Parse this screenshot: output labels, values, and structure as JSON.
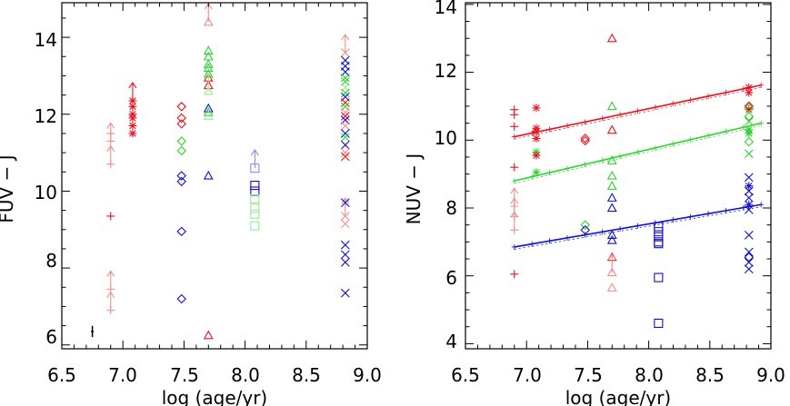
{
  "colors": {
    "red": "#e8121f",
    "pink": "#f08e8a",
    "green": "#2fd12f",
    "lightgreen": "#9fe89a",
    "blue": "#1010c8",
    "lightblue": "#8a8af0",
    "black": "#000000"
  },
  "chart_data": [
    {
      "id": "left",
      "type": "scatter",
      "xlabel": "log (age/yr)",
      "ylabel": "FUV − J",
      "xlim": [
        6.5,
        9.0
      ],
      "ylim": [
        5.9,
        14.9
      ],
      "xticks": [
        6.5,
        7.0,
        7.5,
        8.0,
        8.5,
        9.0
      ],
      "xtick_labels": [
        "6.5",
        "7.0",
        "7.5",
        "8.0",
        "8.5",
        "9.0"
      ],
      "yticks": [
        6,
        8,
        10,
        12,
        14
      ],
      "ytick_labels": [
        "6",
        "8",
        "10",
        "12",
        "14"
      ],
      "error_bar": {
        "x": 6.75,
        "y": 6.35,
        "err": 0.1
      },
      "points": [
        {
          "x": 6.9,
          "y": 9.35,
          "m": "plus",
          "c": "red"
        },
        {
          "x": 6.9,
          "y": 11.3,
          "m": "plus",
          "c": "pink",
          "arrow": "up"
        },
        {
          "x": 6.9,
          "y": 10.7,
          "m": "plus",
          "c": "pink",
          "arrow": "up"
        },
        {
          "x": 6.9,
          "y": 11.5,
          "m": "plus",
          "c": "pink"
        },
        {
          "x": 6.9,
          "y": 7.45,
          "m": "plus",
          "c": "pink",
          "arrow": "up"
        },
        {
          "x": 6.9,
          "y": 6.9,
          "m": "plus",
          "c": "pink",
          "arrow": "up"
        },
        {
          "x": 7.08,
          "y": 12.35,
          "m": "star",
          "c": "red",
          "arrow": "up"
        },
        {
          "x": 7.08,
          "y": 12.2,
          "m": "star",
          "c": "red"
        },
        {
          "x": 7.08,
          "y": 12.0,
          "m": "star",
          "c": "red"
        },
        {
          "x": 7.08,
          "y": 11.9,
          "m": "star",
          "c": "red"
        },
        {
          "x": 7.08,
          "y": 11.7,
          "m": "star",
          "c": "red"
        },
        {
          "x": 7.08,
          "y": 11.5,
          "m": "star",
          "c": "red"
        },
        {
          "x": 7.48,
          "y": 12.2,
          "m": "diamond",
          "c": "red"
        },
        {
          "x": 7.48,
          "y": 11.9,
          "m": "diamond",
          "c": "red"
        },
        {
          "x": 7.48,
          "y": 11.75,
          "m": "diamond",
          "c": "red"
        },
        {
          "x": 7.48,
          "y": 11.3,
          "m": "diamond",
          "c": "green"
        },
        {
          "x": 7.48,
          "y": 11.05,
          "m": "diamond",
          "c": "green"
        },
        {
          "x": 7.48,
          "y": 10.4,
          "m": "diamond",
          "c": "blue"
        },
        {
          "x": 7.48,
          "y": 10.25,
          "m": "diamond",
          "c": "blue"
        },
        {
          "x": 7.48,
          "y": 8.95,
          "m": "diamond",
          "c": "blue"
        },
        {
          "x": 7.48,
          "y": 7.2,
          "m": "diamond",
          "c": "blue"
        },
        {
          "x": 7.7,
          "y": 14.4,
          "m": "triangle",
          "c": "pink",
          "arrow": "up"
        },
        {
          "x": 7.7,
          "y": 13.65,
          "m": "triangle",
          "c": "green"
        },
        {
          "x": 7.7,
          "y": 13.5,
          "m": "triangle",
          "c": "green"
        },
        {
          "x": 7.7,
          "y": 13.3,
          "m": "triangle",
          "c": "green"
        },
        {
          "x": 7.7,
          "y": 13.2,
          "m": "triangle",
          "c": "green"
        },
        {
          "x": 7.7,
          "y": 13.05,
          "m": "triangle",
          "c": "green"
        },
        {
          "x": 7.7,
          "y": 12.95,
          "m": "triangle",
          "c": "red"
        },
        {
          "x": 7.7,
          "y": 12.75,
          "m": "triangle",
          "c": "red"
        },
        {
          "x": 7.7,
          "y": 12.6,
          "m": "triangle",
          "c": "lightgreen",
          "arrow": "up"
        },
        {
          "x": 7.7,
          "y": 12.15,
          "m": "triangle",
          "c": "blue"
        },
        {
          "x": 7.7,
          "y": 12.05,
          "m": "triangle",
          "c": "green"
        },
        {
          "x": 7.7,
          "y": 11.95,
          "m": "triangle",
          "c": "lightgreen"
        },
        {
          "x": 7.7,
          "y": 10.4,
          "m": "triangle",
          "c": "blue"
        },
        {
          "x": 7.7,
          "y": 6.25,
          "m": "triangle",
          "c": "red"
        },
        {
          "x": 8.08,
          "y": 10.6,
          "m": "square",
          "c": "lightblue",
          "arrow": "up"
        },
        {
          "x": 8.08,
          "y": 10.15,
          "m": "square",
          "c": "blue"
        },
        {
          "x": 8.08,
          "y": 10.0,
          "m": "square",
          "c": "blue"
        },
        {
          "x": 8.08,
          "y": 9.8,
          "m": "square",
          "c": "lightgreen"
        },
        {
          "x": 8.08,
          "y": 9.55,
          "m": "square",
          "c": "lightgreen"
        },
        {
          "x": 8.08,
          "y": 9.4,
          "m": "square",
          "c": "lightgreen"
        },
        {
          "x": 8.08,
          "y": 9.1,
          "m": "square",
          "c": "lightgreen"
        },
        {
          "x": 8.82,
          "y": 13.6,
          "m": "cross",
          "c": "pink",
          "arrow": "up"
        },
        {
          "x": 8.82,
          "y": 13.4,
          "m": "cross",
          "c": "blue"
        },
        {
          "x": 8.82,
          "y": 13.25,
          "m": "cross",
          "c": "blue"
        },
        {
          "x": 8.82,
          "y": 13.1,
          "m": "cross",
          "c": "blue"
        },
        {
          "x": 8.82,
          "y": 12.95,
          "m": "cross",
          "c": "green"
        },
        {
          "x": 8.82,
          "y": 12.85,
          "m": "cross",
          "c": "green"
        },
        {
          "x": 8.82,
          "y": 12.7,
          "m": "cross",
          "c": "lightgreen"
        },
        {
          "x": 8.82,
          "y": 12.55,
          "m": "cross",
          "c": "green"
        },
        {
          "x": 8.82,
          "y": 12.45,
          "m": "cross",
          "c": "blue"
        },
        {
          "x": 8.82,
          "y": 12.3,
          "m": "cross",
          "c": "red"
        },
        {
          "x": 8.82,
          "y": 12.2,
          "m": "cross",
          "c": "green"
        },
        {
          "x": 8.82,
          "y": 12.05,
          "m": "cross",
          "c": "pink"
        },
        {
          "x": 8.82,
          "y": 11.95,
          "m": "cross",
          "c": "red"
        },
        {
          "x": 8.82,
          "y": 11.85,
          "m": "cross",
          "c": "blue"
        },
        {
          "x": 8.82,
          "y": 11.7,
          "m": "cross",
          "c": "pink"
        },
        {
          "x": 8.82,
          "y": 11.5,
          "m": "cross",
          "c": "blue"
        },
        {
          "x": 8.82,
          "y": 11.4,
          "m": "cross",
          "c": "green"
        },
        {
          "x": 8.82,
          "y": 11.2,
          "m": "cross",
          "c": "blue"
        },
        {
          "x": 8.82,
          "y": 11.0,
          "m": "cross",
          "c": "pink"
        },
        {
          "x": 8.82,
          "y": 10.9,
          "m": "cross",
          "c": "red"
        },
        {
          "x": 8.82,
          "y": 9.35,
          "m": "cross",
          "c": "pink",
          "arrow": "up"
        },
        {
          "x": 8.82,
          "y": 9.15,
          "m": "cross",
          "c": "pink"
        },
        {
          "x": 8.82,
          "y": 9.7,
          "m": "cross",
          "c": "blue"
        },
        {
          "x": 8.82,
          "y": 8.6,
          "m": "cross",
          "c": "blue"
        },
        {
          "x": 8.82,
          "y": 8.35,
          "m": "cross",
          "c": "blue"
        },
        {
          "x": 8.82,
          "y": 8.15,
          "m": "cross",
          "c": "blue"
        },
        {
          "x": 8.82,
          "y": 7.35,
          "m": "cross",
          "c": "blue"
        }
      ]
    },
    {
      "id": "right",
      "type": "scatter",
      "xlabel": "log (age/yr)",
      "ylabel": "NUV − J",
      "xlim": [
        6.5,
        9.0
      ],
      "ylim": [
        3.85,
        14.05
      ],
      "xticks": [
        6.5,
        7.0,
        7.5,
        8.0,
        8.5,
        9.0
      ],
      "xtick_labels": [
        "6.5",
        "7.0",
        "7.5",
        "8.0",
        "8.5",
        "9.0"
      ],
      "yticks": [
        4,
        6,
        8,
        10,
        12,
        14
      ],
      "ytick_labels": [
        "4",
        "6",
        "8",
        "10",
        "12",
        "14"
      ],
      "fit_lines": [
        {
          "c": "red",
          "x": [
            6.9,
            8.92
          ],
          "y": [
            10.1,
            11.62
          ]
        },
        {
          "c": "green",
          "x": [
            6.9,
            8.92
          ],
          "y": [
            8.8,
            10.5
          ]
        },
        {
          "c": "blue",
          "x": [
            6.9,
            8.92
          ],
          "y": [
            6.85,
            8.1
          ]
        }
      ],
      "points": [
        {
          "x": 6.9,
          "y": 10.9,
          "m": "plus",
          "c": "red"
        },
        {
          "x": 6.9,
          "y": 10.75,
          "m": "plus",
          "c": "red"
        },
        {
          "x": 6.9,
          "y": 10.4,
          "m": "plus",
          "c": "red"
        },
        {
          "x": 6.9,
          "y": 9.2,
          "m": "plus",
          "c": "red"
        },
        {
          "x": 6.9,
          "y": 6.05,
          "m": "plus",
          "c": "red"
        },
        {
          "x": 6.9,
          "y": 8.05,
          "m": "plus",
          "c": "pink",
          "arrow": "up"
        },
        {
          "x": 6.9,
          "y": 7.75,
          "m": "plus",
          "c": "pink",
          "arrow": "up"
        },
        {
          "x": 6.9,
          "y": 7.35,
          "m": "plus",
          "c": "pink",
          "arrow": "up"
        },
        {
          "x": 7.08,
          "y": 10.95,
          "m": "star",
          "c": "red"
        },
        {
          "x": 7.08,
          "y": 10.35,
          "m": "star",
          "c": "red"
        },
        {
          "x": 7.08,
          "y": 10.25,
          "m": "star",
          "c": "red"
        },
        {
          "x": 7.08,
          "y": 10.05,
          "m": "star",
          "c": "red"
        },
        {
          "x": 7.08,
          "y": 9.65,
          "m": "star",
          "c": "green"
        },
        {
          "x": 7.08,
          "y": 9.55,
          "m": "star",
          "c": "red"
        },
        {
          "x": 7.08,
          "y": 9.05,
          "m": "star",
          "c": "green"
        },
        {
          "x": 7.48,
          "y": 10.05,
          "m": "diamond",
          "c": "red"
        },
        {
          "x": 7.48,
          "y": 9.98,
          "m": "diamond",
          "c": "red"
        },
        {
          "x": 7.48,
          "y": 7.5,
          "m": "diamond",
          "c": "green"
        },
        {
          "x": 7.48,
          "y": 7.35,
          "m": "diamond",
          "c": "blue"
        },
        {
          "x": 7.7,
          "y": 13.0,
          "m": "triangle",
          "c": "red"
        },
        {
          "x": 7.7,
          "y": 11.0,
          "m": "triangle",
          "c": "green"
        },
        {
          "x": 7.7,
          "y": 10.3,
          "m": "triangle",
          "c": "red"
        },
        {
          "x": 7.7,
          "y": 9.4,
          "m": "triangle",
          "c": "green"
        },
        {
          "x": 7.7,
          "y": 8.95,
          "m": "triangle",
          "c": "green"
        },
        {
          "x": 7.7,
          "y": 8.65,
          "m": "triangle",
          "c": "green"
        },
        {
          "x": 7.7,
          "y": 8.3,
          "m": "triangle",
          "c": "blue"
        },
        {
          "x": 7.7,
          "y": 8.0,
          "m": "triangle",
          "c": "blue"
        },
        {
          "x": 7.7,
          "y": 7.2,
          "m": "triangle",
          "c": "blue"
        },
        {
          "x": 7.7,
          "y": 7.05,
          "m": "triangle",
          "c": "blue"
        },
        {
          "x": 7.7,
          "y": 6.55,
          "m": "triangle",
          "c": "red"
        },
        {
          "x": 7.7,
          "y": 6.1,
          "m": "triangle",
          "c": "pink",
          "arrow": "up"
        },
        {
          "x": 7.7,
          "y": 5.65,
          "m": "triangle",
          "c": "pink"
        },
        {
          "x": 8.08,
          "y": 7.45,
          "m": "square",
          "c": "blue"
        },
        {
          "x": 8.08,
          "y": 7.3,
          "m": "square",
          "c": "blue"
        },
        {
          "x": 8.08,
          "y": 7.15,
          "m": "square",
          "c": "blue"
        },
        {
          "x": 8.08,
          "y": 7.0,
          "m": "square",
          "c": "blue"
        },
        {
          "x": 8.08,
          "y": 6.95,
          "m": "square",
          "c": "blue"
        },
        {
          "x": 8.08,
          "y": 5.95,
          "m": "square",
          "c": "blue"
        },
        {
          "x": 8.08,
          "y": 4.6,
          "m": "square",
          "c": "blue"
        },
        {
          "x": 8.82,
          "y": 11.55,
          "m": "star",
          "c": "red"
        },
        {
          "x": 8.82,
          "y": 11.4,
          "m": "star",
          "c": "red"
        },
        {
          "x": 8.82,
          "y": 11.0,
          "m": "diamond",
          "c": "red"
        },
        {
          "x": 8.82,
          "y": 10.9,
          "m": "star",
          "c": "red"
        },
        {
          "x": 8.82,
          "y": 10.95,
          "m": "diamond",
          "c": "green"
        },
        {
          "x": 8.82,
          "y": 10.7,
          "m": "diamond",
          "c": "green"
        },
        {
          "x": 8.82,
          "y": 10.55,
          "m": "cross",
          "c": "green"
        },
        {
          "x": 8.82,
          "y": 10.3,
          "m": "star",
          "c": "green"
        },
        {
          "x": 8.82,
          "y": 10.2,
          "m": "star",
          "c": "green"
        },
        {
          "x": 8.82,
          "y": 9.95,
          "m": "diamond",
          "c": "green"
        },
        {
          "x": 8.82,
          "y": 9.6,
          "m": "cross",
          "c": "green"
        },
        {
          "x": 8.82,
          "y": 8.9,
          "m": "cross",
          "c": "blue"
        },
        {
          "x": 8.82,
          "y": 8.65,
          "m": "star",
          "c": "blue"
        },
        {
          "x": 8.82,
          "y": 8.5,
          "m": "cross",
          "c": "blue"
        },
        {
          "x": 8.82,
          "y": 8.3,
          "m": "cross",
          "c": "blue"
        },
        {
          "x": 8.82,
          "y": 8.1,
          "m": "star",
          "c": "blue"
        },
        {
          "x": 8.82,
          "y": 7.95,
          "m": "cross",
          "c": "blue"
        },
        {
          "x": 8.82,
          "y": 7.2,
          "m": "cross",
          "c": "blue"
        },
        {
          "x": 8.82,
          "y": 6.7,
          "m": "cross",
          "c": "blue"
        },
        {
          "x": 8.82,
          "y": 6.55,
          "m": "diamond",
          "c": "blue"
        },
        {
          "x": 8.82,
          "y": 6.4,
          "m": "cross",
          "c": "blue"
        },
        {
          "x": 8.82,
          "y": 6.2,
          "m": "cross",
          "c": "blue"
        }
      ]
    }
  ]
}
